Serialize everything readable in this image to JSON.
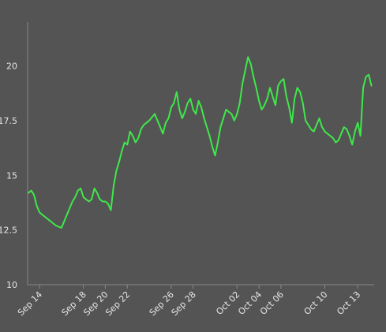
{
  "chart_data": {
    "type": "line",
    "title": "",
    "xlabel": "",
    "ylabel": "",
    "ylim": [
      10,
      22
    ],
    "y_ticks": [
      10,
      12.5,
      15,
      17.5,
      20
    ],
    "y_tick_labels": [
      "10",
      "12.5",
      "15",
      "17.5",
      "20"
    ],
    "x_range": [
      "2021-09-12T22:00",
      "2021-10-14T12:00"
    ],
    "x_ticks": [
      "2021-09-14",
      "2021-09-18",
      "2021-09-20",
      "2021-09-22",
      "2021-09-26",
      "2021-09-28",
      "2021-10-02",
      "2021-10-04",
      "2021-10-06",
      "2021-10-10",
      "2021-10-13"
    ],
    "x_tick_labels": [
      "Sep 14",
      "Sep 18",
      "Sep 20",
      "Sep 22",
      "Sep 26",
      "Sep 28",
      "Oct 02",
      "Oct 04",
      "Oct 06",
      "Oct 10",
      "Oct 13"
    ],
    "grid": false,
    "legend": "none",
    "colors": {
      "background": "#545454",
      "axis": "#888888",
      "line": "#3ee84a",
      "text": "#e6e6e6"
    },
    "series": [
      {
        "x": [
          "2021-09-13T00:00",
          "2021-09-13T06:00",
          "2021-09-13T12:00",
          "2021-09-13T18:00",
          "2021-09-14T00:00",
          "2021-09-14T06:00",
          "2021-09-14T12:00",
          "2021-09-14T18:00",
          "2021-09-15T00:00",
          "2021-09-15T12:00",
          "2021-09-16T00:00",
          "2021-09-16T12:00",
          "2021-09-17T00:00",
          "2021-09-17T06:00",
          "2021-09-17T12:00",
          "2021-09-17T18:00",
          "2021-09-18T00:00",
          "2021-09-18T06:00",
          "2021-09-18T12:00",
          "2021-09-18T18:00",
          "2021-09-19T00:00",
          "2021-09-19T06:00",
          "2021-09-19T12:00",
          "2021-09-19T18:00",
          "2021-09-20T00:00",
          "2021-09-20T06:00",
          "2021-09-20T12:00",
          "2021-09-20T18:00",
          "2021-09-21T00:00",
          "2021-09-21T06:00",
          "2021-09-21T12:00",
          "2021-09-21T18:00",
          "2021-09-22T00:00",
          "2021-09-22T06:00",
          "2021-09-22T12:00",
          "2021-09-22T18:00",
          "2021-09-23T00:00",
          "2021-09-23T06:00",
          "2021-09-23T12:00",
          "2021-09-23T18:00",
          "2021-09-24T00:00",
          "2021-09-24T12:00",
          "2021-09-25T00:00",
          "2021-09-25T06:00",
          "2021-09-25T12:00",
          "2021-09-25T18:00",
          "2021-09-26T00:00",
          "2021-09-26T06:00",
          "2021-09-26T12:00",
          "2021-09-26T18:00",
          "2021-09-27T00:00",
          "2021-09-27T06:00",
          "2021-09-27T12:00",
          "2021-09-27T18:00",
          "2021-09-28T00:00",
          "2021-09-28T06:00",
          "2021-09-28T12:00",
          "2021-09-28T18:00",
          "2021-09-29T00:00",
          "2021-09-29T06:00",
          "2021-09-29T12:00",
          "2021-09-29T18:00",
          "2021-09-30T00:00",
          "2021-09-30T06:00",
          "2021-09-30T12:00",
          "2021-09-30T18:00",
          "2021-10-01T00:00",
          "2021-10-01T06:00",
          "2021-10-01T12:00",
          "2021-10-01T18:00",
          "2021-10-02T00:00",
          "2021-10-02T06:00",
          "2021-10-02T12:00",
          "2021-10-02T18:00",
          "2021-10-03T00:00",
          "2021-10-03T06:00",
          "2021-10-03T12:00",
          "2021-10-03T18:00",
          "2021-10-04T00:00",
          "2021-10-04T06:00",
          "2021-10-04T12:00",
          "2021-10-04T18:00",
          "2021-10-05T00:00",
          "2021-10-05T06:00",
          "2021-10-05T12:00",
          "2021-10-05T18:00",
          "2021-10-06T00:00",
          "2021-10-06T06:00",
          "2021-10-06T12:00",
          "2021-10-06T18:00",
          "2021-10-07T00:00",
          "2021-10-07T06:00",
          "2021-10-07T12:00",
          "2021-10-07T18:00",
          "2021-10-08T00:00",
          "2021-10-08T06:00",
          "2021-10-08T12:00",
          "2021-10-08T18:00",
          "2021-10-09T00:00",
          "2021-10-09T06:00",
          "2021-10-09T12:00",
          "2021-10-09T18:00",
          "2021-10-10T00:00",
          "2021-10-10T06:00",
          "2021-10-10T12:00",
          "2021-10-10T18:00",
          "2021-10-11T00:00",
          "2021-10-11T06:00",
          "2021-10-11T12:00",
          "2021-10-11T18:00",
          "2021-10-12T00:00",
          "2021-10-12T06:00",
          "2021-10-12T12:00",
          "2021-10-12T18:00",
          "2021-10-13T00:00",
          "2021-10-13T06:00",
          "2021-10-13T12:00",
          "2021-10-13T18:00",
          "2021-10-14T00:00",
          "2021-10-14T06:00"
        ],
        "y": [
          14.2,
          14.3,
          14.1,
          13.6,
          13.3,
          13.2,
          13.1,
          13.0,
          12.9,
          12.7,
          12.6,
          13.2,
          13.8,
          14.0,
          14.3,
          14.4,
          14.0,
          13.9,
          13.8,
          13.9,
          14.4,
          14.2,
          13.9,
          13.8,
          13.8,
          13.7,
          13.4,
          14.5,
          15.2,
          15.6,
          16.1,
          16.5,
          16.4,
          17.0,
          16.8,
          16.5,
          16.7,
          17.1,
          17.3,
          17.4,
          17.5,
          17.8,
          17.2,
          16.9,
          17.4,
          17.6,
          18.1,
          18.3,
          18.8,
          18.0,
          17.6,
          17.9,
          18.3,
          18.5,
          18.0,
          17.8,
          18.4,
          18.1,
          17.6,
          17.2,
          16.8,
          16.3,
          15.9,
          16.5,
          17.2,
          17.6,
          18.0,
          17.9,
          17.8,
          17.5,
          17.8,
          18.3,
          19.2,
          19.8,
          20.4,
          20.1,
          19.5,
          19.0,
          18.4,
          18.0,
          18.2,
          18.5,
          19.0,
          18.6,
          18.2,
          19.1,
          19.3,
          19.4,
          18.6,
          18.1,
          17.4,
          18.5,
          19.0,
          18.8,
          18.3,
          17.5,
          17.3,
          17.1,
          17.0,
          17.3,
          17.6,
          17.2,
          17.0,
          16.9,
          16.8,
          16.7,
          16.5,
          16.6,
          16.9,
          17.2,
          17.1,
          16.8,
          16.4,
          17.0,
          17.4,
          16.8,
          19.0,
          19.5,
          19.6,
          19.1
        ]
      }
    ]
  }
}
